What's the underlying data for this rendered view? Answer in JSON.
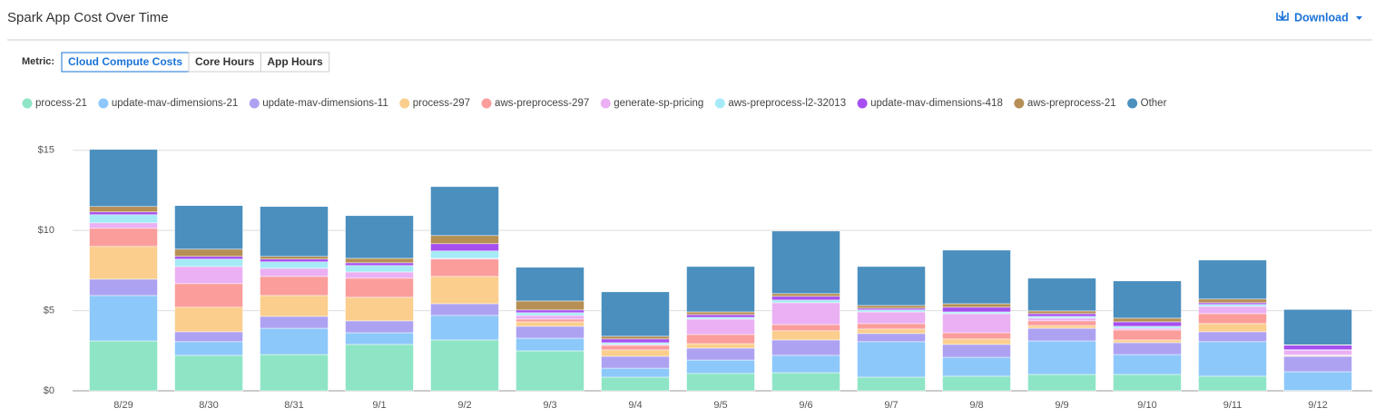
{
  "header": {
    "title": "Spark App Cost Over Time",
    "download": "Download"
  },
  "controls": {
    "label": "Metric:",
    "options": [
      "Cloud Compute Costs",
      "Core Hours",
      "App Hours"
    ],
    "selected": 0
  },
  "chart_data": {
    "type": "stacked_bar",
    "categories": [
      "8/29",
      "8/30",
      "8/31",
      "9/1",
      "9/2",
      "9/3",
      "9/4",
      "9/5",
      "9/6",
      "9/7",
      "9/8",
      "9/9",
      "9/10",
      "9/11",
      "9/12"
    ],
    "series": [
      {
        "name": "process-21",
        "color": "#8ee5c5",
        "values": [
          3.11,
          2.21,
          2.26,
          2.89,
          3.17,
          2.49,
          0.85,
          1.08,
          1.13,
          0.85,
          0.91,
          1.02,
          1.02,
          0.91,
          0.02
        ]
      },
      {
        "name": "update-mav-dimensions-21",
        "color": "#8dc8fa",
        "values": [
          2.83,
          0.85,
          1.64,
          0.73,
          1.53,
          0.79,
          0.56,
          0.84,
          1.08,
          2.21,
          1.18,
          2.09,
          1.24,
          2.15,
          1.17
        ]
      },
      {
        "name": "update-mav-dimensions-11",
        "color": "#ada2f2",
        "values": [
          1.02,
          0.62,
          0.74,
          0.74,
          0.73,
          0.74,
          0.74,
          0.74,
          0.96,
          0.51,
          0.8,
          0.79,
          0.74,
          0.62,
          0.96
        ]
      },
      {
        "name": "process-297",
        "color": "#fbce8d",
        "values": [
          2.04,
          1.53,
          1.3,
          1.47,
          1.7,
          0.28,
          0.4,
          0.28,
          0.57,
          0.28,
          0.34,
          0.17,
          0.17,
          0.51,
          0.05
        ]
      },
      {
        "name": "aws-preprocess-297",
        "color": "#fb9d9b",
        "values": [
          1.13,
          1.47,
          1.19,
          1.19,
          1.08,
          0.17,
          0.28,
          0.57,
          0.39,
          0.34,
          0.39,
          0.29,
          0.62,
          0.62,
          0.03
        ]
      },
      {
        "name": "generate-sp-pricing",
        "color": "#eab0f3",
        "values": [
          0.34,
          1.07,
          0.51,
          0.39,
          0.05,
          0.23,
          0.06,
          0.96,
          1.36,
          0.73,
          1.19,
          0.17,
          0.11,
          0.45,
          0.3
        ]
      },
      {
        "name": "aws-preprocess-l2-32013",
        "color": "#a5eaf6",
        "values": [
          0.51,
          0.46,
          0.4,
          0.4,
          0.46,
          0.17,
          0.11,
          0.11,
          0.17,
          0.12,
          0.11,
          0.11,
          0.12,
          0.12,
          0.03
        ]
      },
      {
        "name": "update-mav-dimensions-418",
        "color": "#a64ff0",
        "values": [
          0.17,
          0.17,
          0.17,
          0.17,
          0.45,
          0.17,
          0.23,
          0.17,
          0.23,
          0.11,
          0.29,
          0.17,
          0.28,
          0.11,
          0.28
        ]
      },
      {
        "name": "aws-preprocess-21",
        "color": "#b68f55",
        "values": [
          0.34,
          0.45,
          0.17,
          0.28,
          0.51,
          0.56,
          0.17,
          0.17,
          0.17,
          0.17,
          0.22,
          0.17,
          0.23,
          0.23,
          0.03
        ]
      },
      {
        "name": "Other",
        "color": "#4a8fbe",
        "values": [
          3.56,
          2.72,
          3.11,
          2.66,
          3.05,
          2.1,
          2.77,
          2.83,
          3.9,
          2.43,
          3.34,
          2.04,
          2.32,
          2.43,
          2.2
        ]
      }
    ],
    "ylim": [
      0,
      16
    ],
    "yticks": [
      {
        "value": 0,
        "label": "$0"
      },
      {
        "value": 5,
        "label": "$5"
      },
      {
        "value": 10,
        "label": "$10"
      },
      {
        "value": 15,
        "label": "$15"
      }
    ],
    "grid": true
  }
}
